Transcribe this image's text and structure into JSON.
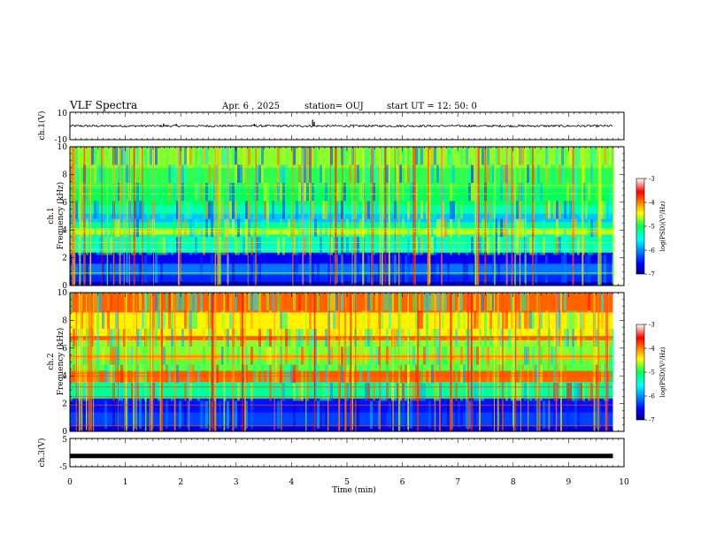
{
  "header": {
    "title": "VLF Spectra",
    "date": "Apr. 6 , 2025",
    "station": "station= OUJ",
    "start": "start  UT =   12: 50: 0"
  },
  "chart_data": [
    {
      "type": "line",
      "name": "ch1-waveform",
      "ylabel": "ch.1(V)",
      "ylim": [
        -10,
        10
      ],
      "yticks": [
        "10",
        "-10"
      ],
      "xlim": [
        0,
        10
      ],
      "baseline": 0,
      "spikes": [
        [
          1.69,
          1.8
        ],
        [
          1.92,
          1.5
        ],
        [
          3.33,
          1.6
        ],
        [
          4.38,
          4.5
        ],
        [
          4.41,
          3.0
        ],
        [
          5.12,
          -1.2
        ],
        [
          7.21,
          1.0
        ]
      ]
    },
    {
      "type": "heatmap",
      "name": "ch1-spectrogram",
      "ylabel": "ch.1\nFrequency (kHz)",
      "ylabel_ch": "ch.1",
      "ylabel_freq": "Frequency (kHz)",
      "ylim": [
        0,
        10
      ],
      "yticks": [
        "10",
        "8",
        "6",
        "4",
        "2",
        "0"
      ],
      "xlim": [
        0,
        10
      ],
      "xmax_data": 9.8,
      "bands": [
        [
          0.0,
          0.3,
          -6.8
        ],
        [
          0.3,
          0.8,
          -6.4
        ],
        [
          0.8,
          1.6,
          -6.1
        ],
        [
          1.6,
          2.4,
          -6.6
        ],
        [
          2.4,
          3.0,
          -5.4
        ],
        [
          3.0,
          3.7,
          -5.3
        ],
        [
          3.7,
          4.1,
          -4.6
        ],
        [
          4.1,
          4.6,
          -5.2
        ],
        [
          4.6,
          5.2,
          -5.8
        ],
        [
          5.2,
          5.8,
          -5.3
        ],
        [
          5.8,
          7.0,
          -5.0
        ],
        [
          7.0,
          8.5,
          -4.9
        ],
        [
          8.5,
          10.0,
          -4.7
        ]
      ],
      "colorbar": {
        "label": "log(PSD)(V²/Hz)",
        "range": [
          -7,
          -3
        ],
        "ticks": [
          "-3",
          "-4",
          "-5",
          "-6",
          "-7"
        ]
      }
    },
    {
      "type": "heatmap",
      "name": "ch2-spectrogram",
      "ylabel": "ch.2\nFrequency (kHz)",
      "ylabel_ch": "ch.2",
      "ylabel_freq": "Frequency (kHz)",
      "ylim": [
        0,
        10
      ],
      "yticks": [
        "10",
        "8",
        "6",
        "4",
        "2",
        "0"
      ],
      "xlim": [
        0,
        10
      ],
      "xmax_data": 9.8,
      "bands": [
        [
          0.0,
          0.4,
          -6.7
        ],
        [
          0.4,
          1.4,
          -6.3
        ],
        [
          1.4,
          2.4,
          -6.5
        ],
        [
          2.4,
          3.6,
          -5.2
        ],
        [
          3.6,
          4.4,
          -3.9
        ],
        [
          4.4,
          5.2,
          -4.8
        ],
        [
          5.2,
          5.6,
          -4.2
        ],
        [
          5.6,
          6.6,
          -4.7
        ],
        [
          6.6,
          6.9,
          -3.9
        ],
        [
          6.9,
          8.6,
          -4.4
        ],
        [
          8.6,
          10.0,
          -3.9
        ]
      ],
      "colorbar": {
        "label": "log(PSD)(V²/Hz)",
        "range": [
          -7,
          -3
        ],
        "ticks": [
          "-3",
          "-4",
          "-5",
          "-6",
          "-7"
        ]
      }
    },
    {
      "type": "line",
      "name": "ch3-waveform",
      "ylabel": "ch.3(V)",
      "ylim": [
        -5,
        5
      ],
      "yticks": [
        "5",
        "-5"
      ],
      "xlim": [
        0,
        10
      ],
      "baseline": -1.2
    }
  ],
  "xaxis": {
    "label": "Time  (min)",
    "ticks": [
      "0",
      "1",
      "2",
      "3",
      "4",
      "5",
      "6",
      "7",
      "8",
      "9",
      "10"
    ]
  }
}
